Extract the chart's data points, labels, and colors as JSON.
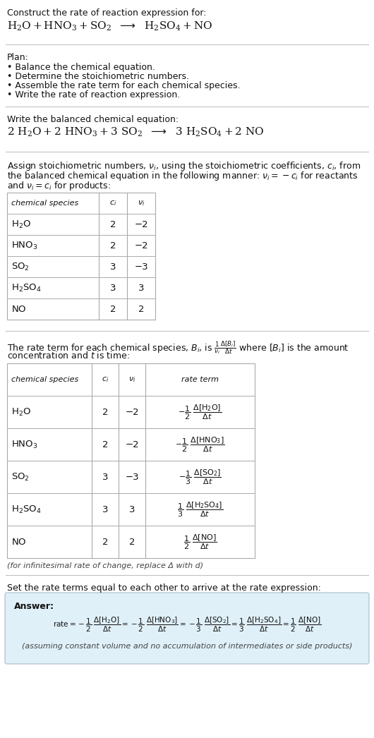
{
  "bg_color": "#ffffff",
  "text_color": "#111111",
  "gray_text": "#444444",
  "header_section": {
    "title": "Construct the rate of reaction expression for:"
  },
  "plan_section": {
    "label": "Plan:",
    "items": [
      "• Balance the chemical equation.",
      "• Determine the stoichiometric numbers.",
      "• Assemble the rate term for each chemical species.",
      "• Write the rate of reaction expression."
    ]
  },
  "balanced_section": {
    "label": "Write the balanced chemical equation:"
  },
  "table1_intro_lines": [
    "Assign stoichiometric numbers, $\\nu_i$, using the stoichiometric coefficients, $c_i$, from",
    "the balanced chemical equation in the following manner: $\\nu_i = -c_i$ for reactants",
    "and $\\nu_i = c_i$ for products:"
  ],
  "table1_rows": [
    [
      "$\\mathregular{H_2O}$",
      "2",
      "−2"
    ],
    [
      "$\\mathregular{HNO_3}$",
      "2",
      "−2"
    ],
    [
      "$\\mathregular{SO_2}$",
      "3",
      "−3"
    ],
    [
      "$\\mathregular{H_2SO_4}$",
      "3",
      "3"
    ],
    [
      "$\\mathregular{NO}$",
      "2",
      "2"
    ]
  ],
  "table2_intro_lines": [
    "The rate term for each chemical species, $B_i$, is $\\frac{1}{\\nu_i}\\frac{\\Delta[B_i]}{\\Delta t}$ where $[B_i]$ is the amount",
    "concentration and $t$ is time:"
  ],
  "table2_rows": [
    [
      "$\\mathregular{H_2O}$",
      "2",
      "−2"
    ],
    [
      "$\\mathregular{HNO_3}$",
      "2",
      "−2"
    ],
    [
      "$\\mathregular{SO_2}$",
      "3",
      "−3"
    ],
    [
      "$\\mathregular{H_2SO_4}$",
      "3",
      "3"
    ],
    [
      "$\\mathregular{NO}$",
      "2",
      "2"
    ]
  ],
  "rate_terms_neg": [
    [
      "-\\frac{1}{2}",
      "\\frac{\\Delta[\\mathrm{H_2O}]}{\\Delta t}"
    ],
    [
      "-\\frac{1}{2}",
      "\\frac{\\Delta[\\mathrm{HNO_3}]}{\\Delta t}"
    ],
    [
      "-\\frac{1}{3}",
      "\\frac{\\Delta[\\mathrm{SO_2}]}{\\Delta t}"
    ],
    [
      "\\frac{1}{3}",
      "\\frac{\\Delta[\\mathrm{H_2SO_4}]}{\\Delta t}"
    ],
    [
      "\\frac{1}{2}",
      "\\frac{\\Delta[\\mathrm{NO}]}{\\Delta t}"
    ]
  ],
  "footnote_infinitesimal": "(for infinitesimal rate of change, replace Δ with d)",
  "answer_intro": "Set the rate terms equal to each other to arrive at the rate expression:",
  "answer_label": "Answer:",
  "answer_footnote": "(assuming constant volume and no accumulation of intermediates or side products)",
  "box_color": "#dff0f8",
  "separator_color": "#bbbbbb",
  "table_border_color": "#aaaaaa",
  "font_size_body": 9,
  "font_size_small": 8,
  "font_size_eq": 11
}
